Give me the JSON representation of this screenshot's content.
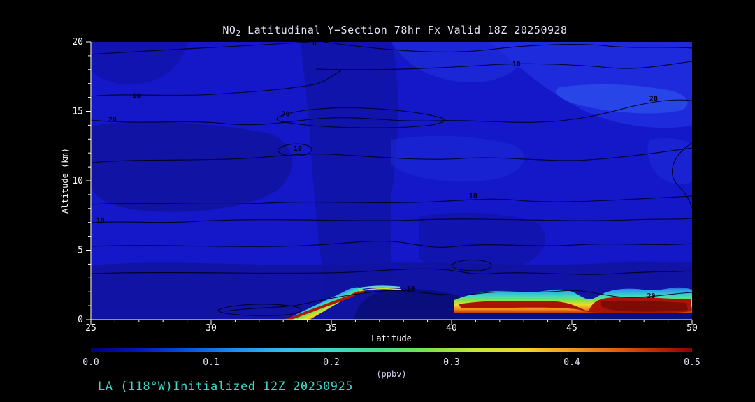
{
  "colors": {
    "background": "#000000",
    "title": "#e8e2fa",
    "axis_text": "#ffffff",
    "footer": "#3cd8c8",
    "contour_line": "#00001e",
    "base_field": "#1418c8",
    "low_value_navy": "#0a0e7c",
    "peak_red": "#aa1408"
  },
  "header": {
    "title_prefix": "NO",
    "title_sub": "2",
    "title_rest": " Latitudinal Y−Section 78hr  Fx Valid 18Z 20250928"
  },
  "chart_data": {
    "type": "heatmap",
    "title": "NO2 Latitudinal Y-Section 78hr Fx Valid 18Z 20250928",
    "xlabel": "Latitude",
    "ylabel": "Altitude (km)",
    "xlim": [
      25,
      50
    ],
    "ylim": [
      0,
      20
    ],
    "x_ticks": [
      25,
      30,
      35,
      40,
      45,
      50
    ],
    "y_ticks": [
      0,
      5,
      10,
      15,
      20
    ],
    "x_minor_tick_step": 1,
    "y_minor_tick_step": 1,
    "grid": false,
    "colorbar": {
      "label": "(ppbv)",
      "min": 0.0,
      "max": 0.5,
      "ticks": [
        "0.0",
        "0.1",
        "0.2",
        "0.3",
        "0.4",
        "0.5"
      ],
      "stops": [
        {
          "pos": 0.0,
          "color": "#000078"
        },
        {
          "pos": 0.08,
          "color": "#0016c0"
        },
        {
          "pos": 0.16,
          "color": "#0a50e6"
        },
        {
          "pos": 0.24,
          "color": "#1f8cf0"
        },
        {
          "pos": 0.32,
          "color": "#35bce8"
        },
        {
          "pos": 0.4,
          "color": "#3cd8c8"
        },
        {
          "pos": 0.48,
          "color": "#46dc8a"
        },
        {
          "pos": 0.56,
          "color": "#7ce24e"
        },
        {
          "pos": 0.64,
          "color": "#c6e832"
        },
        {
          "pos": 0.72,
          "color": "#f0d824"
        },
        {
          "pos": 0.8,
          "color": "#f09a1e"
        },
        {
          "pos": 0.88,
          "color": "#e05a10"
        },
        {
          "pos": 0.94,
          "color": "#c02806"
        },
        {
          "pos": 1.0,
          "color": "#8c0000"
        }
      ]
    },
    "contour_labels": [
      {
        "value": "0",
        "lat": 34.3,
        "km": 19.9
      },
      {
        "value": "10",
        "lat": 42.7,
        "km": 18.4
      },
      {
        "value": "20",
        "lat": 48.4,
        "km": 15.9
      },
      {
        "value": "10",
        "lat": 26.9,
        "km": 16.1
      },
      {
        "value": "20",
        "lat": 25.9,
        "km": 14.4
      },
      {
        "value": "70",
        "lat": 33.1,
        "km": 14.8
      },
      {
        "value": "10",
        "lat": 33.6,
        "km": 12.3
      },
      {
        "value": "10",
        "lat": 40.9,
        "km": 8.9
      },
      {
        "value": "10",
        "lat": 25.4,
        "km": 7.1
      },
      {
        "value": "10",
        "lat": 38.3,
        "km": 2.2
      },
      {
        "value": "20",
        "lat": 48.3,
        "km": 1.7
      }
    ],
    "field_summary": "NO2 below ~0.1 ppbv everywhere above ~2 km; elevated boundary-layer NO2 near the surface",
    "surface_no2_band": {
      "description": "Thin surface layer (below ~2 km) of elevated NO2 reaching colorbar maximum",
      "segments": [
        {
          "lat_start": 33.0,
          "lat_end": 36.5,
          "peak_ppbv": 0.5
        },
        {
          "lat_start": 40.0,
          "lat_end": 50.0,
          "peak_ppbv": 0.5
        }
      ],
      "clean_gap": {
        "lat_start": 36.5,
        "lat_end": 40.0,
        "value_ppbv": 0.0
      }
    }
  },
  "footer": {
    "text": "LA (118°W)Initialized 12Z 20250925"
  }
}
